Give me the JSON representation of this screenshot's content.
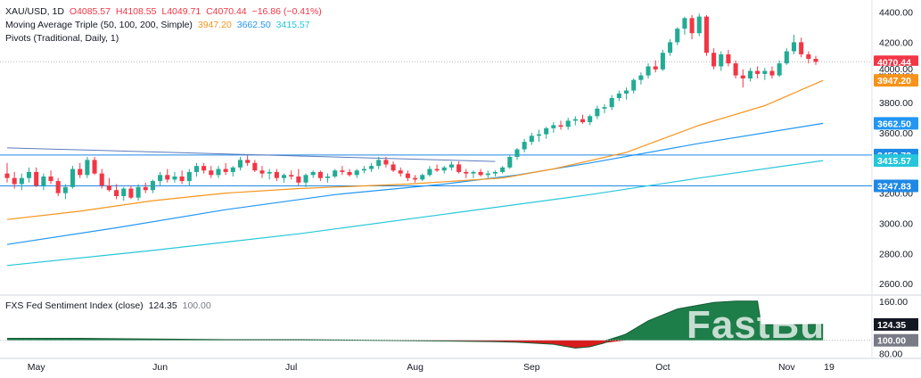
{
  "header": {
    "symbol": "XAU/USD, 1D",
    "open": "O4085.57",
    "high": "H4108.55",
    "low": "L4049.71",
    "close": "C4070.44",
    "change": "−16.86 (−0.41%)",
    "ma_label": "Moving Average Triple (50, 100, 200, Simple)",
    "ma50": "3947.20",
    "ma100": "3662.50",
    "ma200": "3415.57",
    "pivots_label": "Pivots (Traditional, Daily, 1)",
    "indicator_label": "FXS Fed Sentiment Index (close)",
    "indicator_value": "124.35",
    "indicator_ref": "100.00"
  },
  "watermark": "FastBull",
  "colors": {
    "up": "#22ab94",
    "down": "#f23645",
    "ma50": "#f7931a",
    "ma100": "#2196f3",
    "ma200": "#26c6da",
    "pivot": "#1e88e5",
    "sentiment_fill": "#1e7e4a",
    "sentiment_neg": "#d81b1b"
  },
  "chart_data": [
    {
      "type": "candlestick",
      "title": "XAU/USD, 1D",
      "x_ticks": [
        "May",
        "Jun",
        "Jul",
        "Aug",
        "Sep",
        "Oct",
        "Nov",
        "19"
      ],
      "y_ticks": [
        2600,
        2800,
        3000,
        3200,
        3400,
        3600,
        3800,
        4000,
        4200,
        4400
      ],
      "ylim": [
        2530,
        4480
      ],
      "candles": [
        [
          3330,
          3400,
          3270,
          3300
        ],
        [
          3300,
          3340,
          3230,
          3260
        ],
        [
          3260,
          3330,
          3220,
          3300
        ],
        [
          3300,
          3370,
          3270,
          3340
        ],
        [
          3340,
          3370,
          3240,
          3250
        ],
        [
          3250,
          3330,
          3220,
          3310
        ],
        [
          3310,
          3350,
          3260,
          3280
        ],
        [
          3280,
          3300,
          3180,
          3200
        ],
        [
          3200,
          3260,
          3160,
          3240
        ],
        [
          3240,
          3380,
          3230,
          3360
        ],
        [
          3360,
          3400,
          3300,
          3320
        ],
        [
          3320,
          3440,
          3300,
          3420
        ],
        [
          3420,
          3440,
          3320,
          3330
        ],
        [
          3330,
          3360,
          3230,
          3250
        ],
        [
          3250,
          3300,
          3210,
          3220
        ],
        [
          3220,
          3260,
          3160,
          3180
        ],
        [
          3180,
          3240,
          3150,
          3230
        ],
        [
          3230,
          3250,
          3160,
          3170
        ],
        [
          3170,
          3260,
          3150,
          3240
        ],
        [
          3240,
          3270,
          3200,
          3220
        ],
        [
          3220,
          3290,
          3200,
          3280
        ],
        [
          3280,
          3340,
          3250,
          3320
        ],
        [
          3320,
          3360,
          3270,
          3290
        ],
        [
          3290,
          3340,
          3270,
          3310
        ],
        [
          3310,
          3350,
          3260,
          3280
        ],
        [
          3280,
          3360,
          3250,
          3340
        ],
        [
          3340,
          3400,
          3310,
          3380
        ],
        [
          3380,
          3400,
          3330,
          3350
        ],
        [
          3350,
          3380,
          3300,
          3320
        ],
        [
          3320,
          3380,
          3300,
          3360
        ],
        [
          3360,
          3400,
          3320,
          3340
        ],
        [
          3340,
          3380,
          3310,
          3370
        ],
        [
          3370,
          3440,
          3350,
          3420
        ],
        [
          3420,
          3450,
          3380,
          3400
        ],
        [
          3400,
          3420,
          3340,
          3350
        ],
        [
          3350,
          3380,
          3300,
          3330
        ],
        [
          3330,
          3360,
          3290,
          3340
        ],
        [
          3340,
          3360,
          3280,
          3300
        ],
        [
          3300,
          3330,
          3270,
          3320
        ],
        [
          3320,
          3350,
          3290,
          3310
        ],
        [
          3310,
          3360,
          3250,
          3270
        ],
        [
          3270,
          3330,
          3240,
          3320
        ],
        [
          3320,
          3350,
          3300,
          3340
        ],
        [
          3340,
          3350,
          3280,
          3300
        ],
        [
          3300,
          3330,
          3270,
          3310
        ],
        [
          3310,
          3360,
          3300,
          3350
        ],
        [
          3350,
          3380,
          3320,
          3340
        ],
        [
          3340,
          3360,
          3310,
          3320
        ],
        [
          3320,
          3360,
          3300,
          3350
        ],
        [
          3350,
          3380,
          3330,
          3360
        ],
        [
          3360,
          3400,
          3340,
          3380
        ],
        [
          3380,
          3440,
          3360,
          3420
        ],
        [
          3420,
          3440,
          3370,
          3390
        ],
        [
          3390,
          3410,
          3340,
          3350
        ],
        [
          3350,
          3370,
          3310,
          3330
        ],
        [
          3330,
          3350,
          3280,
          3300
        ],
        [
          3300,
          3320,
          3270,
          3290
        ],
        [
          3290,
          3330,
          3280,
          3320
        ],
        [
          3320,
          3380,
          3310,
          3360
        ],
        [
          3360,
          3390,
          3340,
          3350
        ],
        [
          3350,
          3380,
          3330,
          3370
        ],
        [
          3370,
          3410,
          3350,
          3390
        ],
        [
          3390,
          3410,
          3330,
          3340
        ],
        [
          3340,
          3360,
          3300,
          3330
        ],
        [
          3330,
          3350,
          3300,
          3340
        ],
        [
          3340,
          3360,
          3310,
          3320
        ],
        [
          3320,
          3350,
          3300,
          3330
        ],
        [
          3330,
          3350,
          3310,
          3340
        ],
        [
          3340,
          3380,
          3330,
          3370
        ],
        [
          3370,
          3450,
          3360,
          3440
        ],
        [
          3440,
          3500,
          3420,
          3490
        ],
        [
          3490,
          3560,
          3470,
          3540
        ],
        [
          3540,
          3600,
          3520,
          3580
        ],
        [
          3580,
          3620,
          3540,
          3590
        ],
        [
          3590,
          3640,
          3560,
          3630
        ],
        [
          3630,
          3670,
          3600,
          3650
        ],
        [
          3650,
          3680,
          3620,
          3640
        ],
        [
          3640,
          3700,
          3620,
          3680
        ],
        [
          3680,
          3710,
          3650,
          3690
        ],
        [
          3690,
          3720,
          3660,
          3670
        ],
        [
          3670,
          3720,
          3650,
          3710
        ],
        [
          3710,
          3780,
          3690,
          3760
        ],
        [
          3760,
          3790,
          3730,
          3770
        ],
        [
          3770,
          3850,
          3750,
          3830
        ],
        [
          3830,
          3880,
          3810,
          3860
        ],
        [
          3860,
          3900,
          3820,
          3880
        ],
        [
          3880,
          3960,
          3860,
          3950
        ],
        [
          3950,
          4000,
          3920,
          3980
        ],
        [
          3980,
          4060,
          3960,
          4040
        ],
        [
          4040,
          4080,
          4000,
          4020
        ],
        [
          4020,
          4150,
          4010,
          4130
        ],
        [
          4130,
          4220,
          4110,
          4200
        ],
        [
          4200,
          4300,
          4180,
          4290
        ],
        [
          4290,
          4370,
          4250,
          4360
        ],
        [
          4360,
          4380,
          4220,
          4260
        ],
        [
          4260,
          4390,
          4240,
          4370
        ],
        [
          4370,
          4380,
          4110,
          4130
        ],
        [
          4130,
          4160,
          4020,
          4040
        ],
        [
          4040,
          4140,
          4010,
          4120
        ],
        [
          4120,
          4150,
          4040,
          4060
        ],
        [
          4060,
          4080,
          3960,
          3980
        ],
        [
          3980,
          4020,
          3900,
          3960
        ],
        [
          3960,
          4030,
          3940,
          4010
        ],
        [
          4010,
          4040,
          3960,
          3990
        ],
        [
          3990,
          4030,
          3950,
          4010
        ],
        [
          4010,
          4040,
          3960,
          3980
        ],
        [
          3980,
          4080,
          3970,
          4060
        ],
        [
          4060,
          4160,
          4050,
          4140
        ],
        [
          4140,
          4250,
          4120,
          4200
        ],
        [
          4200,
          4230,
          4100,
          4120
        ],
        [
          4120,
          4140,
          4060,
          4090
        ],
        [
          4090,
          4110,
          4050,
          4070
        ]
      ],
      "ma50": [
        [
          0,
          3025
        ],
        [
          10,
          3080
        ],
        [
          20,
          3150
        ],
        [
          30,
          3200
        ],
        [
          40,
          3230
        ],
        [
          55,
          3260
        ],
        [
          68,
          3300
        ],
        [
          75,
          3360
        ],
        [
          85,
          3470
        ],
        [
          95,
          3650
        ],
        [
          104,
          3780
        ],
        [
          112,
          3947
        ]
      ],
      "ma100": [
        [
          0,
          2860
        ],
        [
          15,
          2970
        ],
        [
          30,
          3090
        ],
        [
          45,
          3190
        ],
        [
          60,
          3260
        ],
        [
          70,
          3320
        ],
        [
          80,
          3400
        ],
        [
          95,
          3530
        ],
        [
          112,
          3662
        ]
      ],
      "ma200": [
        [
          0,
          2720
        ],
        [
          20,
          2820
        ],
        [
          40,
          2930
        ],
        [
          60,
          3060
        ],
        [
          80,
          3190
        ],
        [
          95,
          3300
        ],
        [
          112,
          3416
        ]
      ],
      "pivots": [
        {
          "label": "3452.72",
          "value": 3452.72
        },
        {
          "label": "3247.83",
          "value": 3247.83
        }
      ],
      "trendline": [
        [
          0,
          3500
        ],
        [
          67,
          3410
        ]
      ],
      "price_markers": [
        {
          "label": "4070.44",
          "value": 4070.44,
          "color": "#f23645"
        },
        {
          "label": "4000.00",
          "value": 4020,
          "color": "#f23645",
          "partial": true
        },
        {
          "label": "3947.20",
          "value": 3947.2,
          "color": "#f7931a"
        },
        {
          "label": "3662.50",
          "value": 3662.5,
          "color": "#2196f3"
        },
        {
          "label": "3452.72",
          "value": 3452.72,
          "color": "#1e88e5"
        },
        {
          "label": "3415.57",
          "value": 3415.57,
          "color": "#26c6da"
        },
        {
          "label": "3247.83",
          "value": 3247.83,
          "color": "#1e88e5"
        }
      ]
    },
    {
      "type": "area",
      "title": "FXS Fed Sentiment Index (close)",
      "y_ticks": [
        80,
        100,
        160
      ],
      "ylim": [
        75,
        168
      ],
      "baseline": 100,
      "values": [
        [
          0,
          103
        ],
        [
          10,
          103
        ],
        [
          20,
          102
        ],
        [
          30,
          101
        ],
        [
          40,
          101
        ],
        [
          50,
          100
        ],
        [
          60,
          99
        ],
        [
          67,
          98
        ],
        [
          70,
          97
        ],
        [
          75,
          94
        ],
        [
          78,
          88
        ],
        [
          80,
          90
        ],
        [
          82,
          96
        ],
        [
          85,
          110
        ],
        [
          88,
          130
        ],
        [
          92,
          148
        ],
        [
          97,
          158
        ],
        [
          100,
          160
        ],
        [
          103,
          160
        ],
        [
          103.5,
          124
        ],
        [
          108,
          124
        ],
        [
          112,
          124.35
        ]
      ],
      "price_markers": [
        {
          "label": "124.35",
          "value": 124.35,
          "color": "#131722"
        },
        {
          "label": "100.00",
          "value": 100,
          "color": "#787b86"
        }
      ]
    }
  ]
}
